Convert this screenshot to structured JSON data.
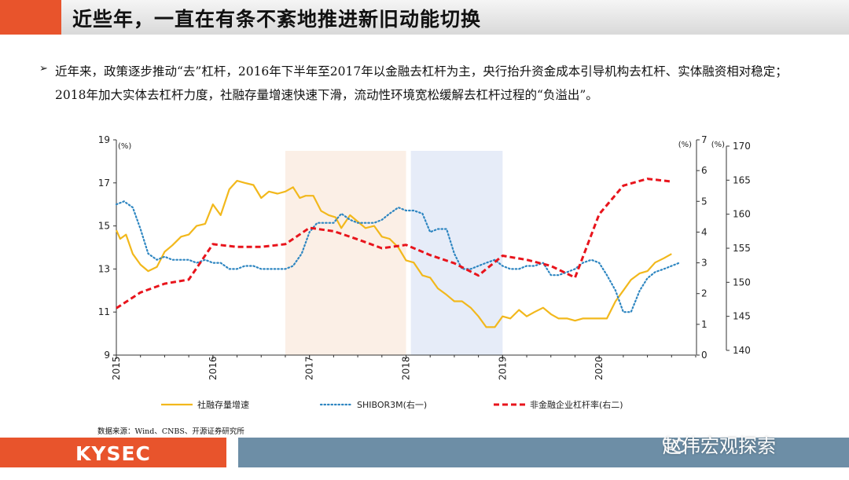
{
  "header": {
    "title": "近些年，一直在有条不紊地推进新旧动能切换"
  },
  "bullet": {
    "mark": "➢",
    "text": "近年来，政策逐步推动“去”杠杆，2016年下半年至2017年以金融去杠杆为主，央行抬升资金成本引导机构去杠杆、实体融资相对稳定；2018年加大实体去杠杆力度，社融存量增速快速下滑，流动性环境宽松缓解去杠杆过程的“负溢出”。"
  },
  "source": "数据来源：Wind、CNBS、开源证券研究所",
  "footer": {
    "brand": "KYSEC",
    "watermark": "赵伟宏观探索"
  },
  "colors": {
    "accent": "#e8542c",
    "footer_blue": "#6d8ea6",
    "social_financing": "#f2b81c",
    "shibor": "#2e86c1",
    "leverage": "#e8141c",
    "shade_2017": "#fbefe6",
    "shade_2018": "#e6ecf8"
  },
  "chart_data": {
    "type": "line",
    "x_ticks": [
      "2015",
      "2016",
      "2017",
      "2018",
      "2019",
      "2020"
    ],
    "x_range": [
      2015.0,
      2021.0
    ],
    "shaded_periods": [
      {
        "start": 2016.75,
        "end": 2018.0
      },
      {
        "start": 2018.05,
        "end": 2019.0
      }
    ],
    "axes": {
      "left": {
        "unit": "(%)",
        "min": 9,
        "max": 19,
        "ticks": [
          9,
          11,
          13,
          15,
          17,
          19
        ]
      },
      "right1": {
        "unit": "(%)",
        "min": 0,
        "max": 7,
        "ticks": [
          0,
          1,
          2,
          3,
          4,
          5,
          6,
          7
        ]
      },
      "right2": {
        "unit": "(%)",
        "min": 140,
        "max": 170,
        "ticks": [
          140,
          145,
          150,
          155,
          160,
          165,
          170
        ]
      }
    },
    "series": [
      {
        "name": "社融存量增速",
        "axis": "left",
        "style": "solid",
        "points": [
          [
            2015.0,
            14.8
          ],
          [
            2015.04,
            14.4
          ],
          [
            2015.1,
            14.6
          ],
          [
            2015.17,
            13.7
          ],
          [
            2015.25,
            13.2
          ],
          [
            2015.33,
            12.9
          ],
          [
            2015.42,
            13.1
          ],
          [
            2015.5,
            13.8
          ],
          [
            2015.58,
            14.1
          ],
          [
            2015.67,
            14.5
          ],
          [
            2015.75,
            14.6
          ],
          [
            2015.83,
            15.0
          ],
          [
            2015.92,
            15.1
          ],
          [
            2016.0,
            16.0
          ],
          [
            2016.08,
            15.5
          ],
          [
            2016.17,
            16.7
          ],
          [
            2016.25,
            17.1
          ],
          [
            2016.33,
            17.0
          ],
          [
            2016.42,
            16.9
          ],
          [
            2016.5,
            16.3
          ],
          [
            2016.58,
            16.6
          ],
          [
            2016.67,
            16.5
          ],
          [
            2016.75,
            16.6
          ],
          [
            2016.83,
            16.8
          ],
          [
            2016.9,
            16.3
          ],
          [
            2016.96,
            16.4
          ],
          [
            2017.04,
            16.4
          ],
          [
            2017.12,
            15.7
          ],
          [
            2017.2,
            15.5
          ],
          [
            2017.27,
            15.4
          ],
          [
            2017.33,
            14.9
          ],
          [
            2017.42,
            15.5
          ],
          [
            2017.5,
            15.2
          ],
          [
            2017.58,
            14.9
          ],
          [
            2017.67,
            15.0
          ],
          [
            2017.75,
            14.5
          ],
          [
            2017.83,
            14.4
          ],
          [
            2017.92,
            14.0
          ],
          [
            2018.0,
            13.4
          ],
          [
            2018.08,
            13.3
          ],
          [
            2018.17,
            12.7
          ],
          [
            2018.25,
            12.6
          ],
          [
            2018.33,
            12.1
          ],
          [
            2018.42,
            11.8
          ],
          [
            2018.5,
            11.5
          ],
          [
            2018.58,
            11.5
          ],
          [
            2018.67,
            11.2
          ],
          [
            2018.75,
            10.8
          ],
          [
            2018.83,
            10.3
          ],
          [
            2018.92,
            10.3
          ],
          [
            2019.0,
            10.8
          ],
          [
            2019.08,
            10.7
          ],
          [
            2019.17,
            11.1
          ],
          [
            2019.25,
            10.8
          ],
          [
            2019.33,
            11.0
          ],
          [
            2019.42,
            11.2
          ],
          [
            2019.5,
            10.9
          ],
          [
            2019.58,
            10.7
          ],
          [
            2019.67,
            10.7
          ],
          [
            2019.75,
            10.6
          ],
          [
            2019.83,
            10.7
          ],
          [
            2019.92,
            10.7
          ],
          [
            2020.0,
            10.7
          ],
          [
            2020.08,
            10.7
          ],
          [
            2020.17,
            11.5
          ],
          [
            2020.25,
            12.0
          ],
          [
            2020.33,
            12.5
          ],
          [
            2020.42,
            12.8
          ],
          [
            2020.5,
            12.9
          ],
          [
            2020.58,
            13.3
          ],
          [
            2020.67,
            13.5
          ],
          [
            2020.75,
            13.7
          ]
        ]
      },
      {
        "name": "SHIBOR3M(右一)",
        "axis": "right1",
        "style": "dotted",
        "points": [
          [
            2015.0,
            4.9
          ],
          [
            2015.08,
            5.0
          ],
          [
            2015.17,
            4.8
          ],
          [
            2015.25,
            4.1
          ],
          [
            2015.33,
            3.3
          ],
          [
            2015.42,
            3.1
          ],
          [
            2015.5,
            3.2
          ],
          [
            2015.58,
            3.1
          ],
          [
            2015.67,
            3.1
          ],
          [
            2015.75,
            3.1
          ],
          [
            2015.83,
            3.0
          ],
          [
            2015.92,
            3.1
          ],
          [
            2016.0,
            3.0
          ],
          [
            2016.08,
            3.0
          ],
          [
            2016.17,
            2.8
          ],
          [
            2016.25,
            2.8
          ],
          [
            2016.33,
            2.9
          ],
          [
            2016.42,
            2.9
          ],
          [
            2016.5,
            2.8
          ],
          [
            2016.58,
            2.8
          ],
          [
            2016.67,
            2.8
          ],
          [
            2016.75,
            2.8
          ],
          [
            2016.83,
            2.9
          ],
          [
            2016.92,
            3.3
          ],
          [
            2017.0,
            4.0
          ],
          [
            2017.08,
            4.3
          ],
          [
            2017.17,
            4.3
          ],
          [
            2017.25,
            4.3
          ],
          [
            2017.33,
            4.6
          ],
          [
            2017.42,
            4.4
          ],
          [
            2017.5,
            4.3
          ],
          [
            2017.58,
            4.3
          ],
          [
            2017.67,
            4.3
          ],
          [
            2017.75,
            4.4
          ],
          [
            2017.83,
            4.6
          ],
          [
            2017.92,
            4.8
          ],
          [
            2018.0,
            4.7
          ],
          [
            2018.08,
            4.7
          ],
          [
            2018.17,
            4.6
          ],
          [
            2018.25,
            4.0
          ],
          [
            2018.33,
            4.1
          ],
          [
            2018.42,
            4.1
          ],
          [
            2018.5,
            3.3
          ],
          [
            2018.58,
            2.8
          ],
          [
            2018.67,
            2.8
          ],
          [
            2018.75,
            2.9
          ],
          [
            2018.83,
            3.0
          ],
          [
            2018.92,
            3.1
          ],
          [
            2019.0,
            2.9
          ],
          [
            2019.08,
            2.8
          ],
          [
            2019.17,
            2.8
          ],
          [
            2019.25,
            2.9
          ],
          [
            2019.33,
            2.9
          ],
          [
            2019.42,
            3.0
          ],
          [
            2019.5,
            2.6
          ],
          [
            2019.58,
            2.6
          ],
          [
            2019.67,
            2.7
          ],
          [
            2019.75,
            2.8
          ],
          [
            2019.83,
            3.0
          ],
          [
            2019.92,
            3.1
          ],
          [
            2020.0,
            3.0
          ],
          [
            2020.08,
            2.6
          ],
          [
            2020.17,
            2.1
          ],
          [
            2020.25,
            1.4
          ],
          [
            2020.33,
            1.4
          ],
          [
            2020.42,
            2.1
          ],
          [
            2020.5,
            2.5
          ],
          [
            2020.58,
            2.7
          ],
          [
            2020.67,
            2.8
          ],
          [
            2020.75,
            2.9
          ],
          [
            2020.83,
            3.0
          ]
        ]
      },
      {
        "name": "非金融企业杠杆率(右二)",
        "axis": "right2",
        "style": "dashed",
        "points": [
          [
            2015.0,
            146.2
          ],
          [
            2015.25,
            148.5
          ],
          [
            2015.5,
            149.8
          ],
          [
            2015.75,
            150.4
          ],
          [
            2016.0,
            155.6
          ],
          [
            2016.25,
            155.2
          ],
          [
            2016.5,
            155.2
          ],
          [
            2016.75,
            155.6
          ],
          [
            2017.0,
            158.0
          ],
          [
            2017.25,
            157.5
          ],
          [
            2017.5,
            156.3
          ],
          [
            2017.75,
            155.0
          ],
          [
            2018.0,
            155.5
          ],
          [
            2018.25,
            154.0
          ],
          [
            2018.5,
            152.8
          ],
          [
            2018.75,
            151.0
          ],
          [
            2019.0,
            153.9
          ],
          [
            2019.25,
            153.3
          ],
          [
            2019.5,
            152.4
          ],
          [
            2019.75,
            150.7
          ],
          [
            2020.0,
            160.0
          ],
          [
            2020.25,
            164.2
          ],
          [
            2020.5,
            165.2
          ],
          [
            2020.75,
            164.8
          ]
        ]
      }
    ]
  }
}
